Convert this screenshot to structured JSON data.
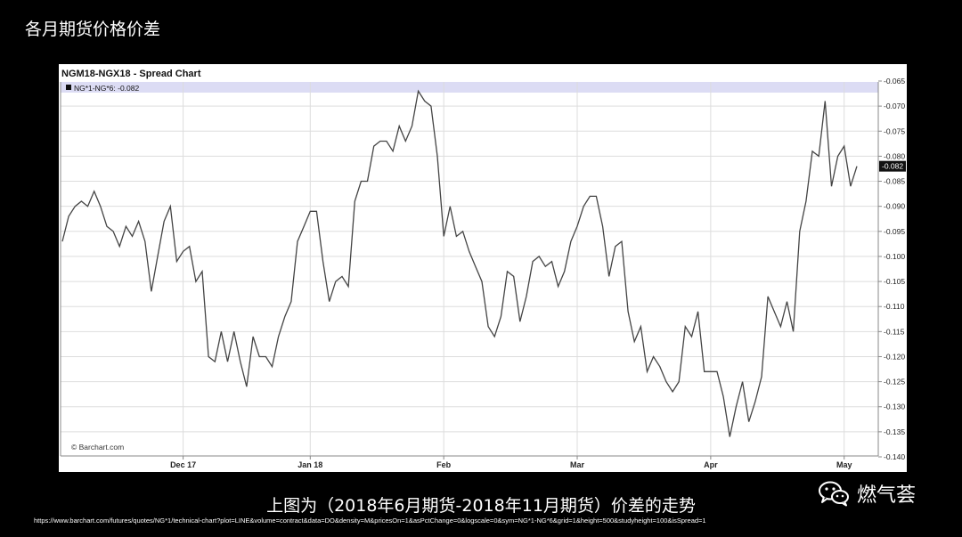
{
  "slide": {
    "title": "各月期货价格价差",
    "caption": "上图为（2018年6月期货-2018年11月期货）价差的走势",
    "source_url": "https://www.barchart.com/futures/quotes/NG*1/technical-chart?plot=LINE&volume=contract&data=DO&density=M&pricesOn=1&asPctChange=0&logscale=0&sym=NG*1-NG*6&grid=1&height=500&studyheight=100&isSpread=1",
    "brand": "燃气荟",
    "brand_icon": "wechat-icon"
  },
  "chart_data": {
    "type": "line",
    "title": "NGM18-NGX18 - Spread Chart",
    "legend": "NG*1-NG*6: -0.082",
    "legend_placement": "top-left",
    "watermark": "© Barchart.com",
    "current_value_label": "-0.082",
    "current_value": -0.082,
    "grid": true,
    "line_color": "#444444",
    "ylim": [
      -0.14,
      -0.065
    ],
    "yticks": [
      "-0.065",
      "-0.070",
      "-0.075",
      "-0.080",
      "-0.085",
      "-0.090",
      "-0.095",
      "-0.100",
      "-0.105",
      "-0.110",
      "-0.115",
      "-0.120",
      "-0.125",
      "-0.130",
      "-0.135",
      "-0.140"
    ],
    "ytick_values": [
      -0.065,
      -0.07,
      -0.075,
      -0.08,
      -0.085,
      -0.09,
      -0.095,
      -0.1,
      -0.105,
      -0.11,
      -0.115,
      -0.12,
      -0.125,
      -0.13,
      -0.135,
      -0.14
    ],
    "xtick_labels": [
      "Dec 17",
      "Jan 18",
      "Feb",
      "Mar",
      "Apr",
      "May"
    ],
    "xtick_positions": [
      19,
      39,
      60,
      81,
      102,
      123
    ],
    "x": [
      0,
      1,
      2,
      3,
      4,
      5,
      6,
      7,
      8,
      9,
      10,
      11,
      12,
      13,
      14,
      15,
      16,
      17,
      18,
      19,
      20,
      21,
      22,
      23,
      24,
      25,
      26,
      27,
      28,
      29,
      30,
      31,
      32,
      33,
      34,
      35,
      36,
      37,
      38,
      39,
      40,
      41,
      42,
      43,
      44,
      45,
      46,
      47,
      48,
      49,
      50,
      51,
      52,
      53,
      54,
      55,
      56,
      57,
      58,
      59,
      60,
      61,
      62,
      63,
      64,
      65,
      66,
      67,
      68,
      69,
      70,
      71,
      72,
      73,
      74,
      75,
      76,
      77,
      78,
      79,
      80,
      81,
      82,
      83,
      84,
      85,
      86,
      87,
      88,
      89,
      90,
      91,
      92,
      93,
      94,
      95,
      96,
      97,
      98,
      99,
      100,
      101,
      102,
      103,
      104,
      105,
      106,
      107,
      108,
      109,
      110,
      111,
      112,
      113,
      114,
      115,
      116,
      117,
      118,
      119,
      120,
      121,
      122,
      123,
      124,
      125
    ],
    "values": [
      -0.097,
      -0.092,
      -0.09,
      -0.089,
      -0.09,
      -0.087,
      -0.09,
      -0.094,
      -0.095,
      -0.098,
      -0.094,
      -0.096,
      -0.093,
      -0.097,
      -0.107,
      -0.1,
      -0.093,
      -0.09,
      -0.101,
      -0.099,
      -0.098,
      -0.105,
      -0.103,
      -0.12,
      -0.121,
      -0.115,
      -0.121,
      -0.115,
      -0.121,
      -0.126,
      -0.116,
      -0.12,
      -0.12,
      -0.122,
      -0.116,
      -0.112,
      -0.109,
      -0.097,
      -0.094,
      -0.091,
      -0.091,
      -0.101,
      -0.109,
      -0.105,
      -0.104,
      -0.106,
      -0.089,
      -0.085,
      -0.085,
      -0.078,
      -0.077,
      -0.077,
      -0.079,
      -0.074,
      -0.077,
      -0.074,
      -0.067,
      -0.069,
      -0.07,
      -0.08,
      -0.096,
      -0.09,
      -0.096,
      -0.095,
      -0.099,
      -0.102,
      -0.105,
      -0.114,
      -0.116,
      -0.112,
      -0.103,
      -0.104,
      -0.113,
      -0.108,
      -0.101,
      -0.1,
      -0.102,
      -0.101,
      -0.106,
      -0.103,
      -0.097,
      -0.094,
      -0.09,
      -0.088,
      -0.088,
      -0.094,
      -0.104,
      -0.098,
      -0.097,
      -0.111,
      -0.117,
      -0.114,
      -0.123,
      -0.12,
      -0.122,
      -0.125,
      -0.127,
      -0.125,
      -0.114,
      -0.116,
      -0.111,
      -0.123,
      -0.123,
      -0.123,
      -0.128,
      -0.136,
      -0.13,
      -0.125,
      -0.133,
      -0.129,
      -0.124,
      -0.108,
      -0.111,
      -0.114,
      -0.109,
      -0.115,
      -0.095,
      -0.089,
      -0.079,
      -0.08,
      -0.069,
      -0.086,
      -0.08,
      -0.078,
      -0.086,
      -0.082
    ]
  }
}
